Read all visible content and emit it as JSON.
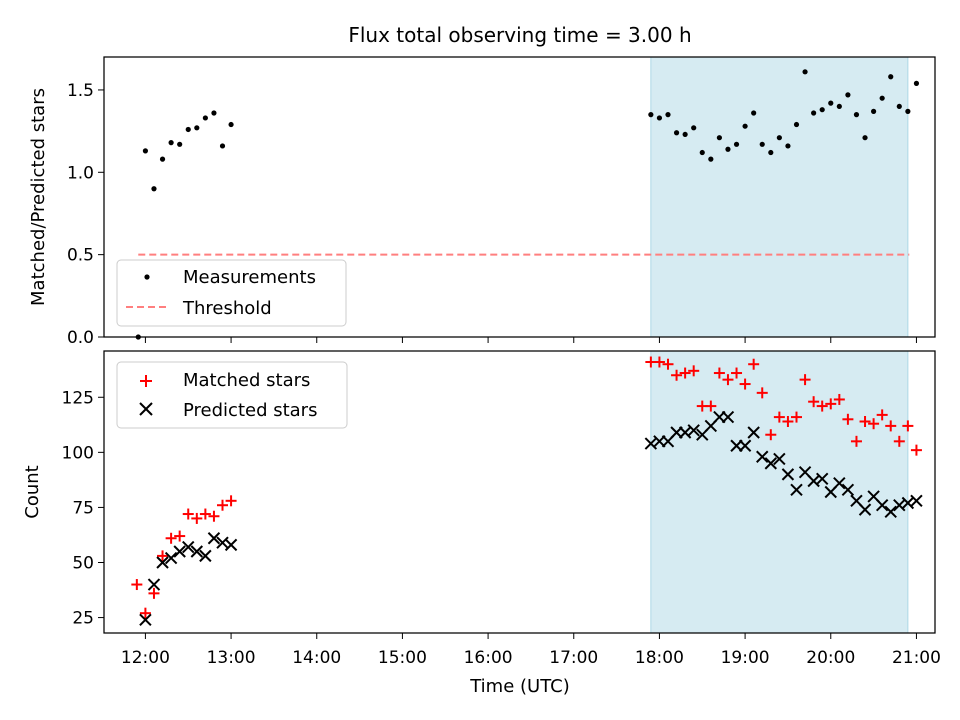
{
  "title": "Flux total observing time = 3.00 h",
  "xlabel": "Time (UTC)",
  "xticks": [
    "12:00",
    "13:00",
    "14:00",
    "15:00",
    "16:00",
    "17:00",
    "18:00",
    "19:00",
    "20:00",
    "21:00"
  ],
  "colors": {
    "highlight": "#add8e6",
    "matched": "#ff0000",
    "predicted": "#000000",
    "threshold": "#ff7f7f",
    "measurements": "#000000"
  },
  "chart_data": [
    {
      "type": "scatter",
      "ylabel": "Matched/Predicted stars",
      "xlim": [
        "11:31",
        "21:13"
      ],
      "ylim": [
        0,
        1.7
      ],
      "yticks": [
        "0.0",
        "0.5",
        "1.0",
        "1.5"
      ],
      "legend_position": "lower-left",
      "highlight_span": [
        "17:54",
        "20:54"
      ],
      "threshold": {
        "name": "Threshold",
        "value": 0.5,
        "x_range": [
          "11:55",
          "20:55"
        ]
      },
      "series": [
        {
          "name": "Measurements",
          "marker": "dot",
          "x": [
            "11:55",
            "12:00",
            "12:06",
            "12:12",
            "12:18",
            "12:24",
            "12:30",
            "12:36",
            "12:42",
            "12:48",
            "12:54",
            "13:00",
            "17:54",
            "18:00",
            "18:06",
            "18:12",
            "18:18",
            "18:24",
            "18:30",
            "18:36",
            "18:42",
            "18:48",
            "18:54",
            "19:00",
            "19:06",
            "19:12",
            "19:18",
            "19:24",
            "19:30",
            "19:36",
            "19:42",
            "19:48",
            "19:54",
            "20:00",
            "20:06",
            "20:12",
            "20:18",
            "20:24",
            "20:30",
            "20:36",
            "20:42",
            "20:48",
            "20:54",
            "21:00"
          ],
          "y": [
            0.0,
            1.13,
            0.9,
            1.08,
            1.18,
            1.17,
            1.26,
            1.27,
            1.33,
            1.36,
            1.16,
            1.29,
            1.35,
            1.33,
            1.35,
            1.24,
            1.23,
            1.27,
            1.12,
            1.08,
            1.21,
            1.14,
            1.17,
            1.28,
            1.36,
            1.17,
            1.12,
            1.21,
            1.16,
            1.29,
            1.61,
            1.36,
            1.38,
            1.42,
            1.4,
            1.47,
            1.35,
            1.21,
            1.37,
            1.45,
            1.58,
            1.4,
            1.37,
            1.54
          ]
        }
      ]
    },
    {
      "type": "scatter",
      "ylabel": "Count",
      "xlim": [
        "11:31",
        "21:13"
      ],
      "ylim": [
        18,
        146
      ],
      "yticks": [
        "25",
        "50",
        "75",
        "100",
        "125"
      ],
      "legend_position": "top-left",
      "highlight_span": [
        "17:54",
        "20:54"
      ],
      "series": [
        {
          "name": "Matched stars",
          "marker": "plus",
          "x": [
            "11:54",
            "12:00",
            "12:06",
            "12:12",
            "12:18",
            "12:24",
            "12:30",
            "12:36",
            "12:42",
            "12:48",
            "12:54",
            "13:00",
            "17:54",
            "18:00",
            "18:06",
            "18:12",
            "18:18",
            "18:24",
            "18:30",
            "18:36",
            "18:42",
            "18:48",
            "18:54",
            "19:00",
            "19:06",
            "19:12",
            "19:18",
            "19:24",
            "19:30",
            "19:36",
            "19:42",
            "19:48",
            "19:54",
            "20:00",
            "20:06",
            "20:12",
            "20:18",
            "20:24",
            "20:30",
            "20:36",
            "20:42",
            "20:48",
            "20:54",
            "21:00"
          ],
          "y": [
            40,
            27,
            36,
            53,
            61,
            62,
            72,
            70,
            72,
            71,
            76,
            78,
            141,
            141,
            140,
            135,
            136,
            137,
            121,
            121,
            136,
            133,
            136,
            131,
            140,
            127,
            108,
            116,
            114,
            116,
            133,
            123,
            121,
            122,
            124,
            115,
            105,
            114,
            113,
            117,
            112,
            105,
            112,
            101
          ]
        },
        {
          "name": "Predicted stars",
          "marker": "x",
          "x": [
            "12:00",
            "12:06",
            "12:12",
            "12:18",
            "12:24",
            "12:30",
            "12:36",
            "12:42",
            "12:48",
            "12:54",
            "13:00",
            "17:54",
            "18:00",
            "18:06",
            "18:12",
            "18:18",
            "18:24",
            "18:30",
            "18:36",
            "18:42",
            "18:48",
            "18:54",
            "19:00",
            "19:06",
            "19:12",
            "19:18",
            "19:24",
            "19:30",
            "19:36",
            "19:42",
            "19:48",
            "19:54",
            "20:00",
            "20:06",
            "20:12",
            "20:18",
            "20:24",
            "20:30",
            "20:36",
            "20:42",
            "20:48",
            "20:54",
            "21:00"
          ],
          "y": [
            24,
            40,
            50,
            52,
            55,
            57,
            55,
            53,
            61,
            59,
            58,
            104,
            105,
            105,
            109,
            109,
            110,
            108,
            112,
            116,
            116,
            103,
            103,
            109,
            98,
            95,
            97,
            90,
            83,
            91,
            87,
            88,
            82,
            86,
            83,
            78,
            74,
            80,
            76,
            73,
            76,
            77,
            78
          ]
        }
      ]
    }
  ]
}
